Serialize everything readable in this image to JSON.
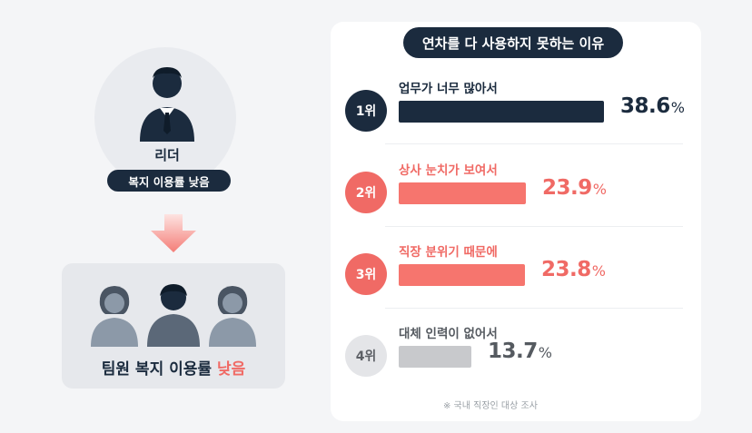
{
  "colors": {
    "navy": "#1b2b3e",
    "coral": "#f06a65",
    "coral_bar": "#f6756e",
    "gray": "#c8c9cc",
    "gray_circle": "#e4e5e8"
  },
  "left": {
    "leader_name": "리더",
    "leader_badge": "복지 이용률 낮음",
    "arrow_icon": "arrow-down-icon",
    "team_caption_prefix": "팀원 복지 이용률",
    "team_caption_highlight": "낮음"
  },
  "chart_data": {
    "type": "bar",
    "title": "연차를 다 사용하지 못하는 이유",
    "categories": [
      "업무가 너무 많아서",
      "상사 눈치가 보여서",
      "직장 분위기 때문에",
      "대체 인력이 없어서"
    ],
    "ranks": [
      "1위",
      "2위",
      "3위",
      "4위"
    ],
    "values": [
      38.6,
      23.9,
      23.8,
      13.7
    ],
    "unit": "%",
    "footnote": "※ 국내 직장인 대상 조사"
  }
}
